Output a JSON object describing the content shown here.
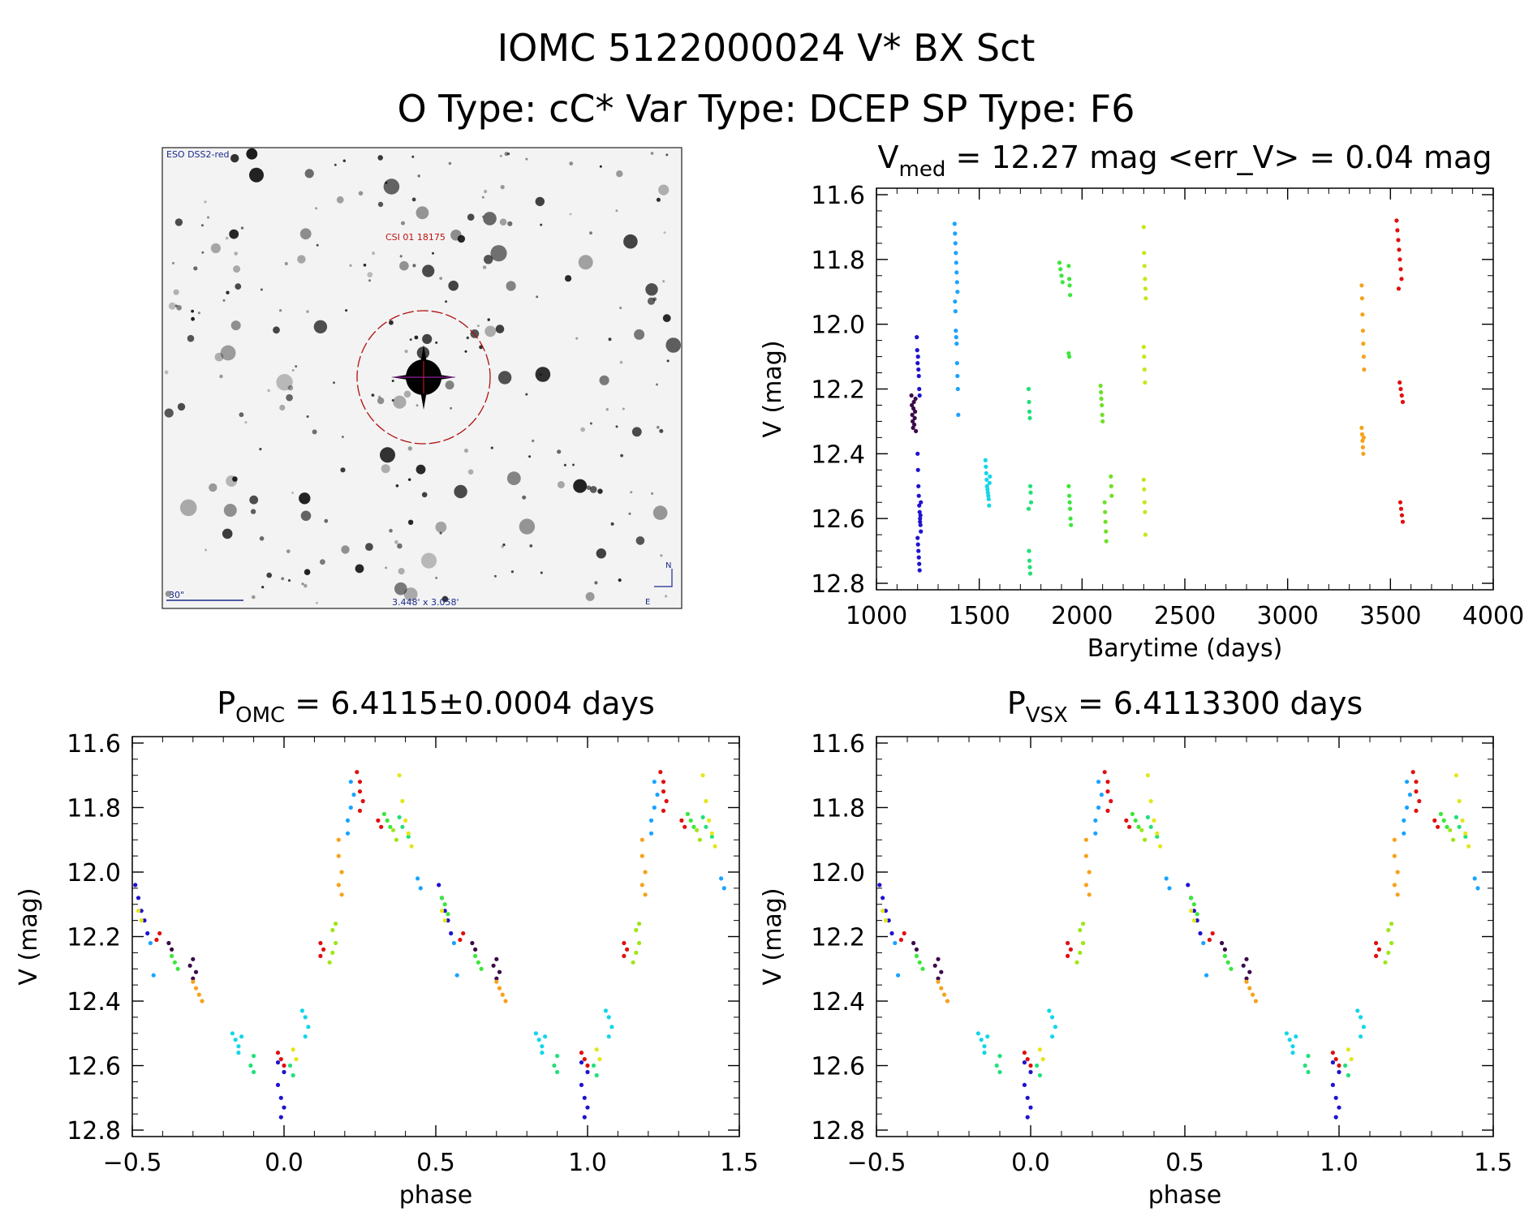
{
  "header": {
    "title": "IOMC 5122000024   V* BX Sct",
    "subtitle": "O Type: cC*  Var Type: DCEP  SP Type: F6"
  },
  "finder": {
    "label_top": "ESO DSS2-red",
    "object_label": "CSI 01 18175",
    "scale_label": "30\"",
    "fov_label": "3.448' x 3.058'",
    "north": "N",
    "east": "E"
  },
  "colors": {
    "palette": [
      "#3b0a4a",
      "#1f12cf",
      "#1aa3ff",
      "#12d6e8",
      "#22e07a",
      "#3be63b",
      "#9ee619",
      "#e3e619",
      "#f6a21c",
      "#f23a12",
      "#e01010"
    ]
  },
  "chart_data": [
    {
      "id": "lightcurve",
      "type": "scatter",
      "title_main": "V",
      "title_sub": "med",
      "title_rest": " = 12.27 mag <err_V> = 0.04 mag",
      "xlabel": "Barytime (days)",
      "ylabel": "V (mag)",
      "xlim": [
        1000,
        4000
      ],
      "ylim": [
        12.82,
        11.58
      ],
      "xticks": [
        "1000",
        "1500",
        "2000",
        "2500",
        "3000",
        "3500",
        "4000"
      ],
      "yticks": [
        "11.6",
        "11.8",
        "12.0",
        "12.2",
        "12.4",
        "12.6",
        "12.8"
      ],
      "groups": [
        {
          "color": "#3b0a4a",
          "points": [
            [
              1170,
              12.22
            ],
            [
              1172,
              12.25
            ],
            [
              1174,
              12.28
            ],
            [
              1176,
              12.3
            ],
            [
              1178,
              12.32
            ],
            [
              1180,
              12.26
            ],
            [
              1182,
              12.24
            ],
            [
              1184,
              12.31
            ],
            [
              1186,
              12.29
            ],
            [
              1188,
              12.27
            ],
            [
              1190,
              12.23
            ],
            [
              1192,
              12.33
            ]
          ]
        },
        {
          "color": "#1f12cf",
          "points": [
            [
              1196,
              12.04
            ],
            [
              1198,
              12.08
            ],
            [
              1200,
              12.12
            ],
            [
              1202,
              12.1
            ],
            [
              1204,
              12.14
            ],
            [
              1206,
              12.16
            ],
            [
              1208,
              12.2
            ],
            [
              1210,
              12.22
            ],
            [
              1200,
              12.4
            ],
            [
              1202,
              12.45
            ],
            [
              1204,
              12.5
            ],
            [
              1206,
              12.53
            ],
            [
              1208,
              12.56
            ],
            [
              1210,
              12.58
            ],
            [
              1212,
              12.6
            ],
            [
              1214,
              12.62
            ],
            [
              1216,
              12.64
            ],
            [
              1200,
              12.66
            ],
            [
              1202,
              12.68
            ],
            [
              1204,
              12.7
            ],
            [
              1206,
              12.72
            ],
            [
              1208,
              12.74
            ],
            [
              1210,
              12.76
            ],
            [
              1212,
              12.61
            ],
            [
              1214,
              12.59
            ],
            [
              1216,
              12.55
            ]
          ]
        },
        {
          "color": "#1aa3ff",
          "points": [
            [
              1380,
              11.69
            ],
            [
              1382,
              11.72
            ],
            [
              1384,
              11.75
            ],
            [
              1386,
              11.78
            ],
            [
              1388,
              11.81
            ],
            [
              1390,
              11.84
            ],
            [
              1392,
              11.87
            ],
            [
              1394,
              11.9
            ],
            [
              1382,
              11.93
            ],
            [
              1384,
              11.96
            ],
            [
              1386,
              12.02
            ],
            [
              1388,
              12.04
            ],
            [
              1390,
              12.06
            ],
            [
              1392,
              12.12
            ],
            [
              1394,
              12.16
            ],
            [
              1396,
              12.2
            ],
            [
              1398,
              12.28
            ]
          ]
        },
        {
          "color": "#12d6e8",
          "points": [
            [
              1530,
              12.42
            ],
            [
              1532,
              12.44
            ],
            [
              1534,
              12.46
            ],
            [
              1536,
              12.48
            ],
            [
              1538,
              12.5
            ],
            [
              1540,
              12.51
            ],
            [
              1542,
              12.52
            ],
            [
              1544,
              12.53
            ],
            [
              1546,
              12.54
            ],
            [
              1548,
              12.56
            ],
            [
              1550,
              12.49
            ],
            [
              1552,
              12.47
            ]
          ]
        },
        {
          "color": "#22e07a",
          "points": [
            [
              1740,
              12.2
            ],
            [
              1742,
              12.24
            ],
            [
              1744,
              12.27
            ],
            [
              1746,
              12.29
            ],
            [
              1748,
              12.5
            ],
            [
              1750,
              12.52
            ],
            [
              1752,
              12.55
            ],
            [
              1740,
              12.57
            ],
            [
              1742,
              12.7
            ],
            [
              1744,
              12.73
            ],
            [
              1746,
              12.75
            ],
            [
              1748,
              12.77
            ]
          ]
        },
        {
          "color": "#3be63b",
          "points": [
            [
              1890,
              11.81
            ],
            [
              1895,
              11.83
            ],
            [
              1900,
              11.85
            ],
            [
              1905,
              11.87
            ],
            [
              1935,
              11.82
            ],
            [
              1938,
              11.86
            ],
            [
              1940,
              11.88
            ],
            [
              1942,
              11.91
            ],
            [
              1935,
              12.09
            ],
            [
              1938,
              12.1
            ],
            [
              1935,
              12.5
            ],
            [
              1938,
              12.53
            ],
            [
              1940,
              12.55
            ],
            [
              1942,
              12.57
            ],
            [
              1944,
              12.6
            ],
            [
              1946,
              12.62
            ]
          ]
        },
        {
          "color": "#6fe02a",
          "points": [
            [
              2090,
              12.19
            ],
            [
              2092,
              12.21
            ],
            [
              2094,
              12.23
            ],
            [
              2096,
              12.25
            ],
            [
              2098,
              12.28
            ],
            [
              2100,
              12.3
            ],
            [
              2110,
              12.55
            ],
            [
              2112,
              12.58
            ],
            [
              2114,
              12.61
            ],
            [
              2116,
              12.64
            ],
            [
              2118,
              12.67
            ],
            [
              2140,
              12.47
            ],
            [
              2142,
              12.5
            ],
            [
              2144,
              12.53
            ]
          ]
        },
        {
          "color": "#c8e619",
          "points": [
            [
              2300,
              11.7
            ],
            [
              2302,
              11.78
            ],
            [
              2304,
              11.82
            ],
            [
              2306,
              11.86
            ],
            [
              2308,
              11.89
            ],
            [
              2310,
              11.92
            ],
            [
              2300,
              12.07
            ],
            [
              2302,
              12.1
            ],
            [
              2304,
              12.14
            ],
            [
              2306,
              12.18
            ],
            [
              2300,
              12.48
            ],
            [
              2302,
              12.51
            ],
            [
              2304,
              12.55
            ],
            [
              2306,
              12.58
            ],
            [
              2308,
              12.65
            ]
          ]
        },
        {
          "color": "#f6a21c",
          "points": [
            [
              3360,
              11.88
            ],
            [
              3362,
              11.92
            ],
            [
              3364,
              11.97
            ],
            [
              3366,
              12.02
            ],
            [
              3368,
              12.06
            ],
            [
              3370,
              12.1
            ],
            [
              3372,
              12.14
            ],
            [
              3360,
              12.32
            ],
            [
              3362,
              12.34
            ],
            [
              3364,
              12.36
            ],
            [
              3366,
              12.38
            ],
            [
              3368,
              12.4
            ],
            [
              3370,
              12.35
            ]
          ]
        },
        {
          "color": "#e01010",
          "points": [
            [
              3530,
              11.68
            ],
            [
              3534,
              11.71
            ],
            [
              3538,
              11.74
            ],
            [
              3542,
              11.77
            ],
            [
              3546,
              11.8
            ],
            [
              3550,
              11.83
            ],
            [
              3554,
              11.86
            ],
            [
              3540,
              11.89
            ],
            [
              3545,
              12.18
            ],
            [
              3550,
              12.2
            ],
            [
              3555,
              12.22
            ],
            [
              3560,
              12.24
            ],
            [
              3548,
              12.55
            ],
            [
              3552,
              12.57
            ],
            [
              3556,
              12.59
            ],
            [
              3560,
              12.61
            ]
          ]
        }
      ]
    },
    {
      "id": "phase_omc",
      "type": "scatter",
      "title_main": "P",
      "title_sub": "OMC",
      "title_rest": " = 6.4115±0.0004 days",
      "xlabel": "phase",
      "ylabel": "V (mag)",
      "xlim": [
        -0.5,
        1.5
      ],
      "ylim": [
        12.82,
        11.58
      ],
      "xticks": [
        "−0.5",
        "0.0",
        "0.5",
        "1.0",
        "1.5"
      ],
      "yticks": [
        "11.6",
        "11.8",
        "12.0",
        "12.2",
        "12.4",
        "12.6",
        "12.8"
      ]
    },
    {
      "id": "phase_vsx",
      "type": "scatter",
      "title_main": "P",
      "title_sub": "VSX",
      "title_rest": " = 6.4113300 days",
      "xlabel": "phase",
      "ylabel": "V (mag)",
      "xlim": [
        -0.5,
        1.5
      ],
      "ylim": [
        12.82,
        11.58
      ],
      "xticks": [
        "−0.5",
        "0.0",
        "0.5",
        "1.0",
        "1.5"
      ],
      "yticks": [
        "11.6",
        "11.8",
        "12.0",
        "12.2",
        "12.4",
        "12.6",
        "12.8"
      ]
    }
  ],
  "phase_groups": [
    {
      "color": "#3b0a4a",
      "points": [
        [
          -0.38,
          12.22
        ],
        [
          -0.37,
          12.24
        ],
        [
          -0.3,
          12.27
        ],
        [
          -0.31,
          12.29
        ],
        [
          -0.29,
          12.31
        ],
        [
          -0.3,
          12.33
        ]
      ]
    },
    {
      "color": "#1f12cf",
      "points": [
        [
          -0.02,
          12.66
        ],
        [
          -0.01,
          12.7
        ],
        [
          0.0,
          12.73
        ],
        [
          -0.01,
          12.76
        ],
        [
          0.0,
          12.62
        ],
        [
          -0.02,
          12.59
        ],
        [
          -0.49,
          12.04
        ],
        [
          -0.48,
          12.08
        ],
        [
          -0.47,
          12.12
        ],
        [
          -0.46,
          12.15
        ],
        [
          -0.45,
          12.19
        ]
      ]
    },
    {
      "color": "#1aa3ff",
      "points": [
        [
          0.22,
          11.72
        ],
        [
          0.23,
          11.76
        ],
        [
          0.22,
          11.8
        ],
        [
          0.21,
          11.84
        ],
        [
          0.21,
          11.88
        ],
        [
          0.44,
          12.02
        ],
        [
          0.45,
          12.05
        ],
        [
          -0.44,
          12.22
        ],
        [
          -0.43,
          12.32
        ]
      ]
    },
    {
      "color": "#12d6e8",
      "points": [
        [
          -0.17,
          12.5
        ],
        [
          -0.16,
          12.52
        ],
        [
          -0.15,
          12.54
        ],
        [
          -0.14,
          12.51
        ],
        [
          -0.15,
          12.56
        ],
        [
          0.06,
          12.43
        ],
        [
          0.07,
          12.45
        ],
        [
          0.08,
          12.48
        ],
        [
          0.07,
          12.51
        ]
      ]
    },
    {
      "color": "#22e07a",
      "points": [
        [
          -0.1,
          12.57
        ],
        [
          -0.11,
          12.6
        ],
        [
          -0.1,
          12.62
        ],
        [
          0.02,
          12.6
        ],
        [
          0.03,
          12.63
        ],
        [
          0.38,
          11.83
        ],
        [
          0.39,
          11.86
        ],
        [
          0.41,
          11.89
        ]
      ]
    },
    {
      "color": "#3be63b",
      "points": [
        [
          -0.37,
          12.26
        ],
        [
          -0.36,
          12.28
        ],
        [
          -0.35,
          12.3
        ],
        [
          0.33,
          11.82
        ],
        [
          0.34,
          11.84
        ],
        [
          0.35,
          11.86
        ],
        [
          0.52,
          12.08
        ],
        [
          0.53,
          12.1
        ],
        [
          0.54,
          12.13
        ]
      ]
    },
    {
      "color": "#9ee619",
      "points": [
        [
          0.16,
          12.18
        ],
        [
          0.17,
          12.22
        ],
        [
          0.16,
          12.25
        ],
        [
          0.15,
          12.28
        ],
        [
          0.17,
          12.16
        ],
        [
          0.36,
          11.87
        ],
        [
          0.37,
          11.9
        ]
      ]
    },
    {
      "color": "#e3e619",
      "points": [
        [
          0.38,
          11.7
        ],
        [
          0.39,
          11.78
        ],
        [
          0.4,
          11.84
        ],
        [
          0.41,
          11.88
        ],
        [
          0.42,
          11.92
        ],
        [
          -0.48,
          12.12
        ],
        [
          -0.47,
          12.15
        ],
        [
          0.03,
          12.55
        ],
        [
          0.04,
          12.58
        ]
      ]
    },
    {
      "color": "#f6a21c",
      "points": [
        [
          0.18,
          11.9
        ],
        [
          0.18,
          11.95
        ],
        [
          0.19,
          12.0
        ],
        [
          0.18,
          12.04
        ],
        [
          0.19,
          12.07
        ],
        [
          -0.3,
          12.34
        ],
        [
          -0.29,
          12.36
        ],
        [
          -0.28,
          12.38
        ],
        [
          -0.27,
          12.4
        ]
      ]
    },
    {
      "color": "#e01010",
      "points": [
        [
          0.24,
          11.69
        ],
        [
          0.25,
          11.72
        ],
        [
          0.25,
          11.75
        ],
        [
          0.26,
          11.78
        ],
        [
          0.25,
          11.81
        ],
        [
          0.31,
          11.84
        ],
        [
          0.32,
          11.86
        ],
        [
          -0.41,
          12.19
        ],
        [
          -0.42,
          12.21
        ],
        [
          0.12,
          12.22
        ],
        [
          0.13,
          12.24
        ],
        [
          0.12,
          12.26
        ],
        [
          -0.02,
          12.56
        ],
        [
          -0.01,
          12.58
        ],
        [
          0.0,
          12.6
        ]
      ]
    }
  ]
}
